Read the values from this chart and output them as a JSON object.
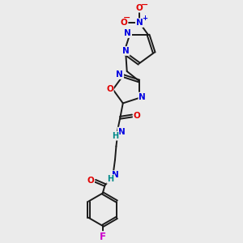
{
  "background_color": "#ebebeb",
  "bond_color": "#1a1a1a",
  "atom_colors": {
    "N": "#0000e0",
    "O": "#e00000",
    "F": "#cc00cc",
    "H": "#008888"
  },
  "figsize": [
    3.0,
    3.0
  ],
  "dpi": 100,
  "xlim": [
    0,
    10
  ],
  "ylim": [
    0,
    10
  ]
}
